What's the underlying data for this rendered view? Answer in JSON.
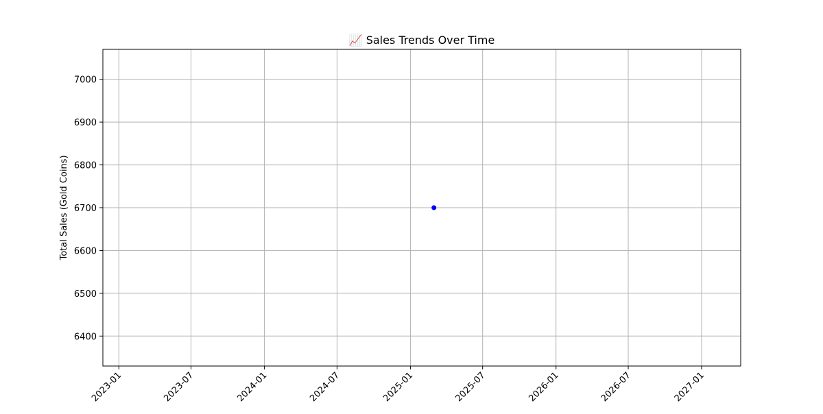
{
  "chart_data": {
    "type": "scatter",
    "title": "📈 Sales Trends Over Time",
    "xlabel": "",
    "ylabel": "Total Sales (Gold Coins)",
    "x_type": "date",
    "xlim": [
      "2022-11-22",
      "2027-04-09"
    ],
    "ylim": [
      6330,
      7070
    ],
    "x_ticks": [
      "2023-01",
      "2023-07",
      "2024-01",
      "2024-07",
      "2025-01",
      "2025-07",
      "2026-01",
      "2026-07",
      "2027-01"
    ],
    "y_ticks": [
      6400,
      6500,
      6600,
      6700,
      6800,
      6900,
      7000
    ],
    "grid": true,
    "series": [
      {
        "color": "#0000ff",
        "points": [
          {
            "x": "2025-03-01",
            "y": 6700
          }
        ]
      }
    ]
  }
}
